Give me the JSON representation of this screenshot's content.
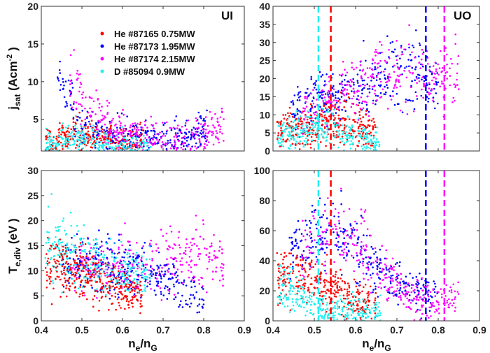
{
  "chart_data": [
    {
      "type": "scatter",
      "panel": "top-left",
      "annotation": "UI",
      "ylabel": {
        "main": "j",
        "sub": "sat",
        "rest": " (Acm",
        "sup": "-2",
        "end": " )"
      },
      "xlim": [
        0.4,
        0.9
      ],
      "ylim": [
        0.8,
        20
      ],
      "yticks": [
        5,
        10,
        15,
        20
      ],
      "xticks": [
        0.4,
        0.5,
        0.6,
        0.7,
        0.8,
        0.9
      ],
      "legend_position": "top-left",
      "series": [
        {
          "name": "He #87165 0.75MW",
          "color": "#ff0000",
          "trend": [
            [
              0.41,
              1.8
            ],
            [
              0.45,
              2.2
            ],
            [
              0.5,
              2.8
            ],
            [
              0.55,
              2.6
            ],
            [
              0.6,
              2.3
            ],
            [
              0.65,
              2.0
            ]
          ]
        },
        {
          "name": "He #87173 1.95MW",
          "color": "#0000ff",
          "trend": [
            [
              0.44,
              9.5
            ],
            [
              0.465,
              10
            ],
            [
              0.48,
              5
            ],
            [
              0.52,
              3
            ],
            [
              0.6,
              2.8
            ],
            [
              0.7,
              2.2
            ],
            [
              0.76,
              3
            ],
            [
              0.81,
              4
            ]
          ]
        },
        {
          "name": "He #87174 2.15MW",
          "color": "#ff00ff",
          "trend": [
            [
              0.47,
              10
            ],
            [
              0.5,
              8
            ],
            [
              0.53,
              6
            ],
            [
              0.57,
              4
            ],
            [
              0.62,
              3
            ],
            [
              0.7,
              2.2
            ],
            [
              0.78,
              3
            ],
            [
              0.85,
              4
            ]
          ]
        },
        {
          "name": "D #85094 0.9MW",
          "color": "#22f0f0",
          "trend": [
            [
              0.41,
              1.4
            ],
            [
              0.46,
              1.8
            ],
            [
              0.5,
              2.4
            ],
            [
              0.55,
              1.5
            ],
            [
              0.6,
              1.2
            ],
            [
              0.67,
              1.0
            ]
          ]
        }
      ]
    },
    {
      "type": "scatter",
      "panel": "top-right",
      "annotation": "UO",
      "xlim": [
        0.4,
        0.9
      ],
      "ylim": [
        0,
        40
      ],
      "yticks": [
        0,
        5,
        10,
        15,
        20,
        25,
        30,
        35,
        40
      ],
      "xticks": [
        0.4,
        0.5,
        0.6,
        0.7,
        0.8,
        0.9
      ],
      "vlines": [
        {
          "x": 0.51,
          "color": "#22f0f0"
        },
        {
          "x": 0.54,
          "color": "#ff0000"
        },
        {
          "x": 0.77,
          "color": "#0000ff"
        },
        {
          "x": 0.815,
          "color": "#ff00ff"
        }
      ],
      "series": [
        {
          "color": "#0000ff",
          "trend": [
            [
              0.44,
              10
            ],
            [
              0.5,
              14
            ],
            [
              0.58,
              17
            ],
            [
              0.68,
              21
            ],
            [
              0.75,
              22
            ],
            [
              0.8,
              17
            ]
          ]
        },
        {
          "color": "#ff00ff",
          "trend": [
            [
              0.47,
              11
            ],
            [
              0.55,
              15
            ],
            [
              0.65,
              20
            ],
            [
              0.72,
              22
            ],
            [
              0.8,
              20
            ],
            [
              0.85,
              22
            ]
          ]
        },
        {
          "color": "#ff0000",
          "trend": [
            [
              0.41,
              5.5
            ],
            [
              0.5,
              7
            ],
            [
              0.55,
              8.5
            ],
            [
              0.6,
              7
            ],
            [
              0.65,
              6
            ]
          ]
        },
        {
          "color": "#22f0f0",
          "trend": [
            [
              0.41,
              4
            ],
            [
              0.48,
              5
            ],
            [
              0.51,
              8
            ],
            [
              0.56,
              5
            ],
            [
              0.66,
              2
            ]
          ]
        }
      ]
    },
    {
      "type": "scatter",
      "panel": "bottom-left",
      "ylabel": {
        "main": "T",
        "sub": "e,div",
        "rest": " (eV )",
        "sup": "",
        "end": ""
      },
      "xlabel": {
        "main": "n",
        "sub": "e",
        "rest": "/n",
        "sub2": "G"
      },
      "xlim": [
        0.4,
        0.9
      ],
      "ylim": [
        0,
        30
      ],
      "yticks": [
        0,
        5,
        10,
        15,
        20,
        25,
        30
      ],
      "xticks": [
        0.4,
        0.5,
        0.6,
        0.7,
        0.8,
        0.9
      ],
      "series": [
        {
          "color": "#ff00ff",
          "trend": [
            [
              0.47,
              11
            ],
            [
              0.5,
              11
            ],
            [
              0.6,
              11
            ],
            [
              0.7,
              12
            ],
            [
              0.8,
              13
            ],
            [
              0.85,
              11
            ]
          ]
        },
        {
          "color": "#0000ff",
          "trend": [
            [
              0.45,
              12
            ],
            [
              0.55,
              11
            ],
            [
              0.65,
              10
            ],
            [
              0.72,
              8
            ],
            [
              0.8,
              4
            ]
          ]
        },
        {
          "color": "#22f0f0",
          "trend": [
            [
              0.41,
              16
            ],
            [
              0.5,
              13
            ],
            [
              0.58,
              10
            ],
            [
              0.67,
              9
            ]
          ]
        },
        {
          "color": "#ff0000",
          "trend": [
            [
              0.41,
              10
            ],
            [
              0.5,
              10
            ],
            [
              0.55,
              8
            ],
            [
              0.6,
              6
            ],
            [
              0.65,
              5
            ]
          ]
        }
      ]
    },
    {
      "type": "scatter",
      "panel": "bottom-right",
      "xlabel": {
        "main": "n",
        "sub": "e",
        "rest": "/n",
        "sub2": "G"
      },
      "xlim": [
        0.4,
        0.9
      ],
      "ylim": [
        0,
        100
      ],
      "yticks": [
        0,
        20,
        40,
        60,
        80,
        100
      ],
      "xticks": [
        0.4,
        0.5,
        0.6,
        0.7,
        0.8,
        0.9
      ],
      "vlines": [
        {
          "x": 0.51,
          "color": "#22f0f0"
        },
        {
          "x": 0.54,
          "color": "#ff0000"
        },
        {
          "x": 0.77,
          "color": "#0000ff"
        },
        {
          "x": 0.815,
          "color": "#ff00ff"
        }
      ],
      "series": [
        {
          "color": "#0000ff",
          "trend": [
            [
              0.44,
              45
            ],
            [
              0.5,
              55
            ],
            [
              0.57,
              62
            ],
            [
              0.63,
              40
            ],
            [
              0.7,
              25
            ],
            [
              0.8,
              15
            ]
          ]
        },
        {
          "color": "#ff00ff",
          "trend": [
            [
              0.47,
              50
            ],
            [
              0.58,
              60
            ],
            [
              0.65,
              35
            ],
            [
              0.72,
              20
            ],
            [
              0.8,
              12
            ],
            [
              0.85,
              15
            ]
          ]
        },
        {
          "color": "#ff0000",
          "trend": [
            [
              0.41,
              30
            ],
            [
              0.5,
              28
            ],
            [
              0.55,
              20
            ],
            [
              0.6,
              12
            ],
            [
              0.65,
              10
            ]
          ]
        },
        {
          "color": "#22f0f0",
          "trend": [
            [
              0.41,
              25
            ],
            [
              0.47,
              15
            ],
            [
              0.52,
              7
            ],
            [
              0.66,
              5
            ]
          ]
        }
      ]
    }
  ]
}
